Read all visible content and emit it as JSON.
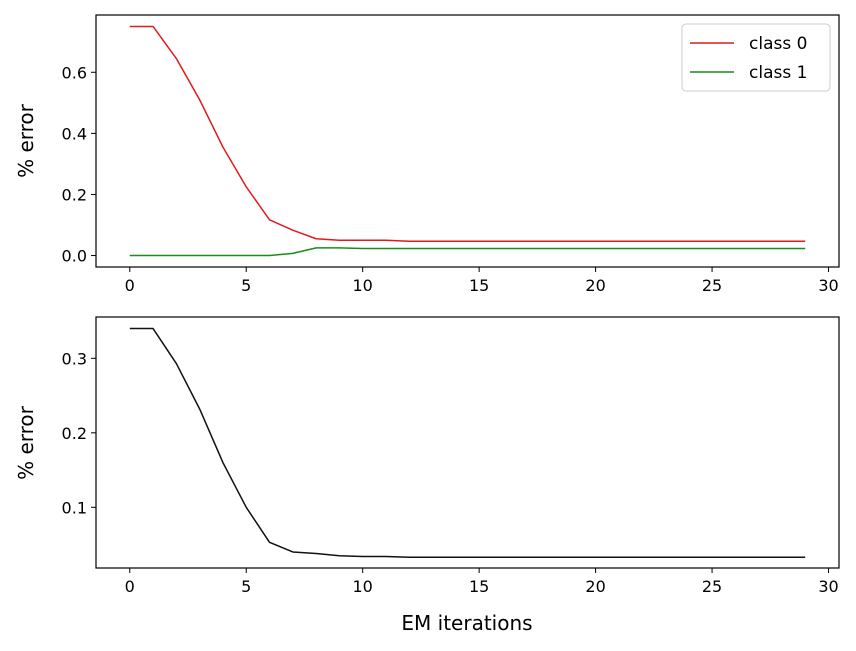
{
  "chart_data": [
    {
      "type": "line",
      "title": "",
      "xlabel": "",
      "ylabel": "% error",
      "xlim": [
        -1.45,
        30.45
      ],
      "ylim": [
        -0.0375,
        0.7875
      ],
      "xticks": [
        0,
        5,
        10,
        15,
        20,
        25,
        30
      ],
      "xtick_labels": [
        "0",
        "5",
        "10",
        "15",
        "20",
        "25",
        "30"
      ],
      "yticks": [
        0.0,
        0.2,
        0.4,
        0.6
      ],
      "ytick_labels": [
        "0.0",
        "0.2",
        "0.4",
        "0.6"
      ],
      "grid": false,
      "legend": "top-right",
      "x": [
        0,
        1,
        2,
        3,
        4,
        5,
        6,
        7,
        8,
        9,
        10,
        11,
        12,
        13,
        14,
        15,
        16,
        17,
        18,
        19,
        20,
        21,
        22,
        23,
        24,
        25,
        26,
        27,
        28,
        29
      ],
      "series": [
        {
          "name": "class 0",
          "color": "#e31a1c",
          "values": [
            0.75,
            0.75,
            0.645,
            0.51,
            0.355,
            0.225,
            0.117,
            0.083,
            0.055,
            0.05,
            0.05,
            0.05,
            0.047,
            0.047,
            0.047,
            0.047,
            0.047,
            0.047,
            0.047,
            0.047,
            0.047,
            0.047,
            0.047,
            0.047,
            0.047,
            0.047,
            0.047,
            0.047,
            0.047,
            0.047
          ]
        },
        {
          "name": "class 1",
          "color": "#1a8c1a",
          "values": [
            0,
            0,
            0,
            0,
            0,
            0,
            0,
            0.007,
            0.025,
            0.025,
            0.023,
            0.023,
            0.023,
            0.023,
            0.023,
            0.023,
            0.023,
            0.023,
            0.023,
            0.023,
            0.023,
            0.023,
            0.023,
            0.023,
            0.023,
            0.023,
            0.023,
            0.023,
            0.023,
            0.023
          ]
        }
      ]
    },
    {
      "type": "line",
      "title": "",
      "xlabel": "EM iterations",
      "ylabel": "% error",
      "xlim": [
        -1.45,
        30.45
      ],
      "ylim": [
        0.0185,
        0.3555
      ],
      "xticks": [
        0,
        5,
        10,
        15,
        20,
        25,
        30
      ],
      "xtick_labels": [
        "0",
        "5",
        "10",
        "15",
        "20",
        "25",
        "30"
      ],
      "yticks": [
        0.1,
        0.2,
        0.3
      ],
      "ytick_labels": [
        "0.1",
        "0.2",
        "0.3"
      ],
      "grid": false,
      "legend": "none",
      "x": [
        0,
        1,
        2,
        3,
        4,
        5,
        6,
        7,
        8,
        9,
        10,
        11,
        12,
        13,
        14,
        15,
        16,
        17,
        18,
        19,
        20,
        21,
        22,
        23,
        24,
        25,
        26,
        27,
        28,
        29
      ],
      "series": [
        {
          "color": "#111111",
          "values": [
            0.34,
            0.34,
            0.293,
            0.232,
            0.16,
            0.1,
            0.053,
            0.04,
            0.038,
            0.035,
            0.034,
            0.034,
            0.033,
            0.033,
            0.033,
            0.033,
            0.033,
            0.033,
            0.033,
            0.033,
            0.033,
            0.033,
            0.033,
            0.033,
            0.033,
            0.033,
            0.033,
            0.033,
            0.033,
            0.033
          ]
        }
      ]
    }
  ]
}
